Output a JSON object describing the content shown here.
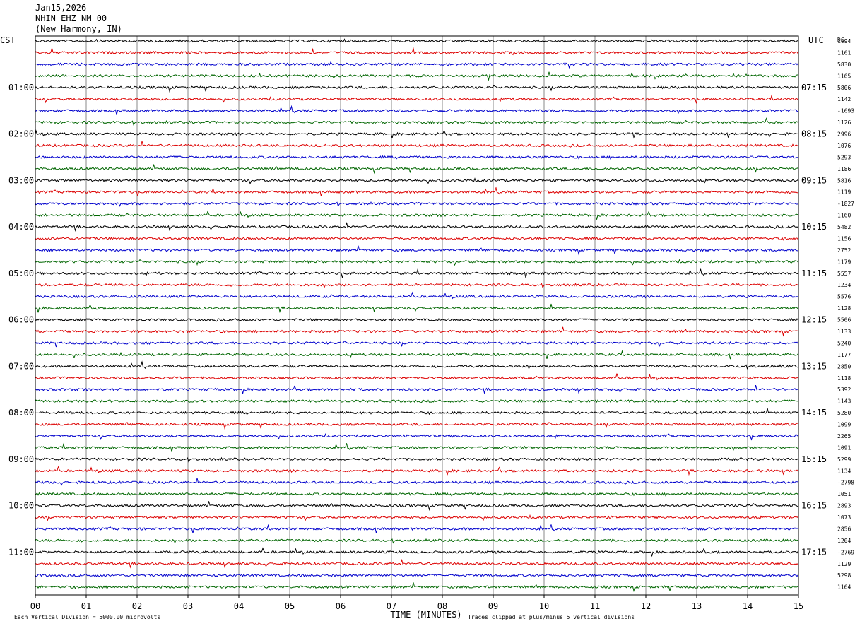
{
  "header": {
    "date": "Jan15,2026",
    "station": "NHIN EHZ NM 00",
    "location": "(New Harmony, IN)"
  },
  "labels": {
    "left_tz": "CST",
    "right_tz": "UTC",
    "dc": "DC"
  },
  "footer": {
    "scale_note": "Each Vertical Division = 5000.00 microvolts",
    "clip_note": "Traces clipped at plus/minus 5 vertical divisions"
  },
  "colors": {
    "trace_cycle": [
      "#000000",
      "#dd0000",
      "#0000cc",
      "#006600"
    ],
    "grid": "#888888",
    "frame": "#000000"
  },
  "chart_data": {
    "type": "line",
    "title": "NHIN EHZ NM 00",
    "xlabel": "TIME (MINUTES)",
    "xlim": [
      0,
      15
    ],
    "x_ticks": [
      "00",
      "01",
      "02",
      "03",
      "04",
      "05",
      "06",
      "07",
      "08",
      "09",
      "10",
      "11",
      "12",
      "13",
      "14",
      "15"
    ],
    "hour_labels_left": [
      "01:00",
      "02:00",
      "03:00",
      "04:00",
      "05:00",
      "06:00",
      "07:00",
      "08:00",
      "09:00",
      "10:00",
      "11:00"
    ],
    "hour_labels_right": [
      "07:15",
      "08:15",
      "09:15",
      "10:15",
      "11:15",
      "12:15",
      "13:15",
      "14:15",
      "15:15",
      "16:15",
      "17:15"
    ],
    "trace_count": 48,
    "minutes_per_trace": 15,
    "dc_offsets": [
      "1094",
      "1161",
      "5830",
      "1165",
      "5806",
      "1142",
      "-1693",
      "1126",
      "2996",
      "1076",
      "5293",
      "1186",
      "5816",
      "1119",
      "-1827",
      "1160",
      "5482",
      "1156",
      "2752",
      "1179",
      "5557",
      "1234",
      "5576",
      "1128",
      "5506",
      "1133",
      "5240",
      "1177",
      "2850",
      "1118",
      "5392",
      "1143",
      "5280",
      "1099",
      "2265",
      "1091",
      "5299",
      "1134",
      "-2798",
      "1051",
      "2893",
      "1073",
      "2856",
      "1204",
      "-2769",
      "1129",
      "5298",
      "1164"
    ]
  }
}
